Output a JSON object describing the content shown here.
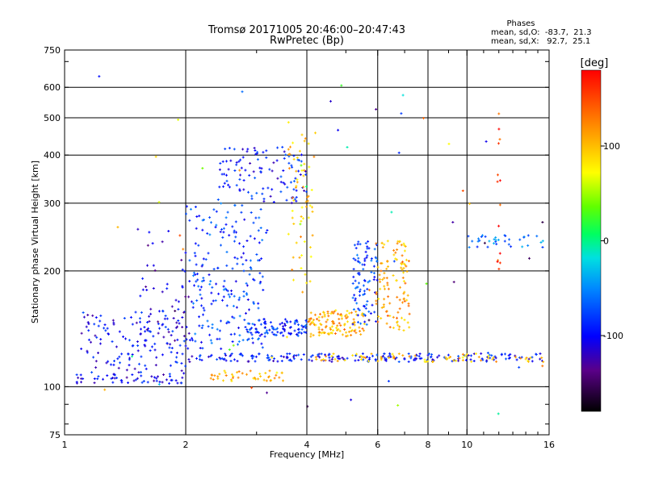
{
  "chart_data": {
    "type": "scatter",
    "title": "Tromsø 20171005 20:46:00–20:47:43",
    "subtitle": "RwPretec (Bp)",
    "xlabel": "Frequency [MHz]",
    "ylabel": "Stationary phase Virtual Height [km]",
    "xscale": "log",
    "yscale": "log",
    "xlim": [
      1,
      16
    ],
    "ylim": [
      75,
      750
    ],
    "xticks": [
      1,
      2,
      4,
      6,
      8,
      10,
      16
    ],
    "yticks": [
      75,
      100,
      200,
      300,
      400,
      500,
      600,
      750
    ],
    "grid_x": [
      2,
      4,
      6,
      8,
      10
    ],
    "grid_y": [
      100,
      200,
      300,
      400,
      500,
      600
    ],
    "colorbar": {
      "label": "[deg]",
      "range": [
        -180,
        180
      ],
      "ticks": [
        -100,
        0,
        100
      ],
      "colormap": "rainbow"
    },
    "stats": {
      "heading": "Phases",
      "o_mode": "mean, sd,O:  -83.7,  21.3",
      "x_mode": "mean, sd,X:   92.7,  25.1"
    },
    "traces": [
      {
        "kind": "band",
        "x_range": [
          1.05,
          2.0
        ],
        "h_range": [
          102,
          108
        ],
        "phase_mean": -100,
        "count": 55
      },
      {
        "kind": "band",
        "x_range": [
          2.0,
          15.5
        ],
        "h_range": [
          116,
          122
        ],
        "phase_mean": -95,
        "count": 200
      },
      {
        "kind": "band",
        "x_range": [
          4.2,
          15.5
        ],
        "h_range": [
          116,
          122
        ],
        "phase_mean": 100,
        "count": 70
      },
      {
        "kind": "band",
        "x_range": [
          2.3,
          3.5
        ],
        "h_range": [
          103,
          110
        ],
        "phase_mean": 100,
        "count": 45
      },
      {
        "kind": "cloud",
        "x_range": [
          1.1,
          2.0
        ],
        "h_range": [
          108,
          160
        ],
        "phase_mean": -100,
        "count": 140
      },
      {
        "kind": "cloud",
        "x_range": [
          1.5,
          2.1
        ],
        "h_range": [
          125,
          260
        ],
        "phase_mean": -110,
        "count": 50
      },
      {
        "kind": "cloud",
        "x_range": [
          2.0,
          3.2
        ],
        "h_range": [
          125,
          300
        ],
        "phase_mean": -80,
        "count": 220
      },
      {
        "kind": "cloud",
        "x_range": [
          2.4,
          4.0
        ],
        "h_range": [
          300,
          420
        ],
        "phase_mean": -95,
        "count": 110
      },
      {
        "kind": "cloud",
        "x_range": [
          2.8,
          4.0
        ],
        "h_range": [
          135,
          150
        ],
        "phase_mean": -85,
        "count": 90
      },
      {
        "kind": "cloud",
        "x_range": [
          3.6,
          4.2
        ],
        "h_range": [
          170,
          500
        ],
        "phase_mean": 100,
        "count": 60
      },
      {
        "kind": "cloud",
        "x_range": [
          4.0,
          5.6
        ],
        "h_range": [
          135,
          158
        ],
        "phase_mean": 110,
        "count": 120
      },
      {
        "kind": "cloud",
        "x_range": [
          5.2,
          6.0
        ],
        "h_range": [
          145,
          240
        ],
        "phase_mean": -80,
        "count": 90
      },
      {
        "kind": "cloud",
        "x_range": [
          5.9,
          7.2
        ],
        "h_range": [
          140,
          240
        ],
        "phase_mean": 110,
        "count": 110
      },
      {
        "kind": "band",
        "x_range": [
          10.0,
          15.5
        ],
        "h_range": [
          230,
          248
        ],
        "phase_mean": -60,
        "count": 35
      },
      {
        "kind": "column",
        "x_range": [
          11.9,
          12.1
        ],
        "h_range": [
          180,
          560
        ],
        "phase_mean": 160,
        "count": 14
      },
      {
        "kind": "scatter",
        "x_range": [
          1.05,
          15.5
        ],
        "h_range": [
          78,
          650
        ],
        "phase_mean": 0,
        "count": 60
      }
    ]
  }
}
